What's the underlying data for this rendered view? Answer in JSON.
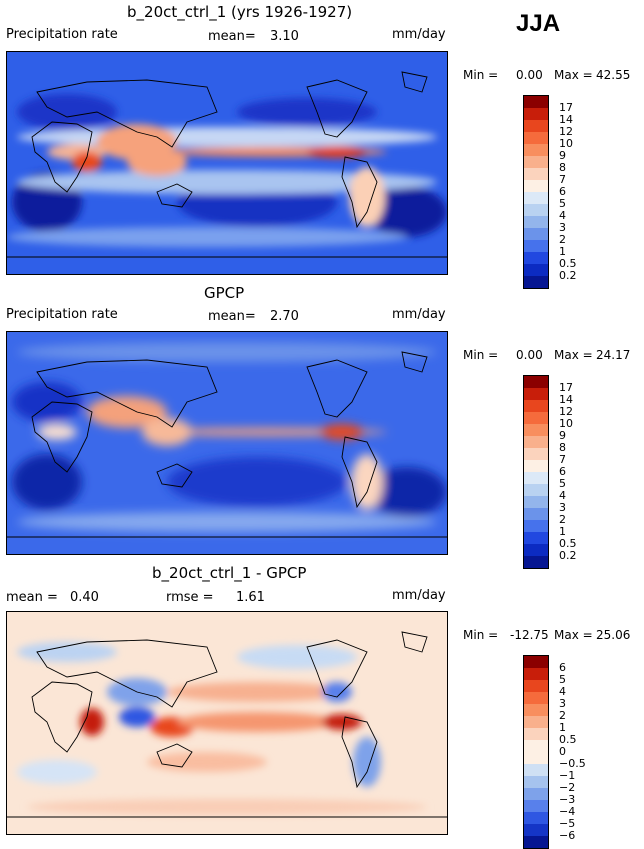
{
  "season": "JJA",
  "panels": [
    {
      "id": "model",
      "title": "b_20ct_ctrl_1 (yrs 1926-1927)",
      "left_label": "Precipitation rate",
      "mid_label": "mean=",
      "mid_value": "3.10",
      "units": "mm/day",
      "min_label": "Min =",
      "min_value": "0.00",
      "max_label": "Max =",
      "max_value": "42.55",
      "colorbar_ticks": [
        "17",
        "14",
        "12",
        "10",
        "9",
        "8",
        "7",
        "6",
        "5",
        "4",
        "3",
        "2",
        "1",
        "0.5",
        "0.2"
      ],
      "colorbar_colors": [
        "#8b0000",
        "#c81e0a",
        "#e8461e",
        "#f56b3c",
        "#f88e5e",
        "#f9b08c",
        "#fbd3bd",
        "#fdf0e4",
        "#dce9f7",
        "#b9d2f1",
        "#93b5ec",
        "#6b93ea",
        "#4672ec",
        "#2148e0",
        "#0c2bc2",
        "#061692"
      ]
    },
    {
      "id": "obs",
      "title": "GPCP",
      "left_label": "Precipitation rate",
      "mid_label": "mean=",
      "mid_value": "2.70",
      "units": "mm/day",
      "min_label": "Min =",
      "min_value": "0.00",
      "max_label": "Max =",
      "max_value": "24.17",
      "colorbar_ticks": [
        "17",
        "14",
        "12",
        "10",
        "9",
        "8",
        "7",
        "6",
        "5",
        "4",
        "3",
        "2",
        "1",
        "0.5",
        "0.2"
      ],
      "colorbar_colors": [
        "#8b0000",
        "#c81e0a",
        "#e8461e",
        "#f56b3c",
        "#f88e5e",
        "#f9b08c",
        "#fbd3bd",
        "#fdf0e4",
        "#dce9f7",
        "#b9d2f1",
        "#93b5ec",
        "#6b93ea",
        "#4672ec",
        "#2148e0",
        "#0c2bc2",
        "#061692"
      ]
    },
    {
      "id": "diff",
      "title": "b_20ct_ctrl_1 - GPCP",
      "left_label": "mean =",
      "left_value": "0.40",
      "mid_label": "rmse =",
      "mid_value": "1.61",
      "units": "mm/day",
      "min_label": "Min =",
      "min_value": "-12.75",
      "max_label": "Max =",
      "max_value": "25.06",
      "colorbar_ticks": [
        "6",
        "5",
        "4",
        "3",
        "2",
        "1",
        "0.5",
        "0",
        "−0.5",
        "−1",
        "−2",
        "−3",
        "−4",
        "−5",
        "−6"
      ],
      "colorbar_colors": [
        "#8b0000",
        "#c81e0a",
        "#e8461e",
        "#f56b3c",
        "#f88e5e",
        "#f9b08c",
        "#fbd3bd",
        "#fdf0e4",
        "#fdf0e4",
        "#cfe0f4",
        "#a6c3ee",
        "#7ea2ea",
        "#5880eb",
        "#2f57e2",
        "#1535c6",
        "#061692"
      ]
    }
  ]
}
